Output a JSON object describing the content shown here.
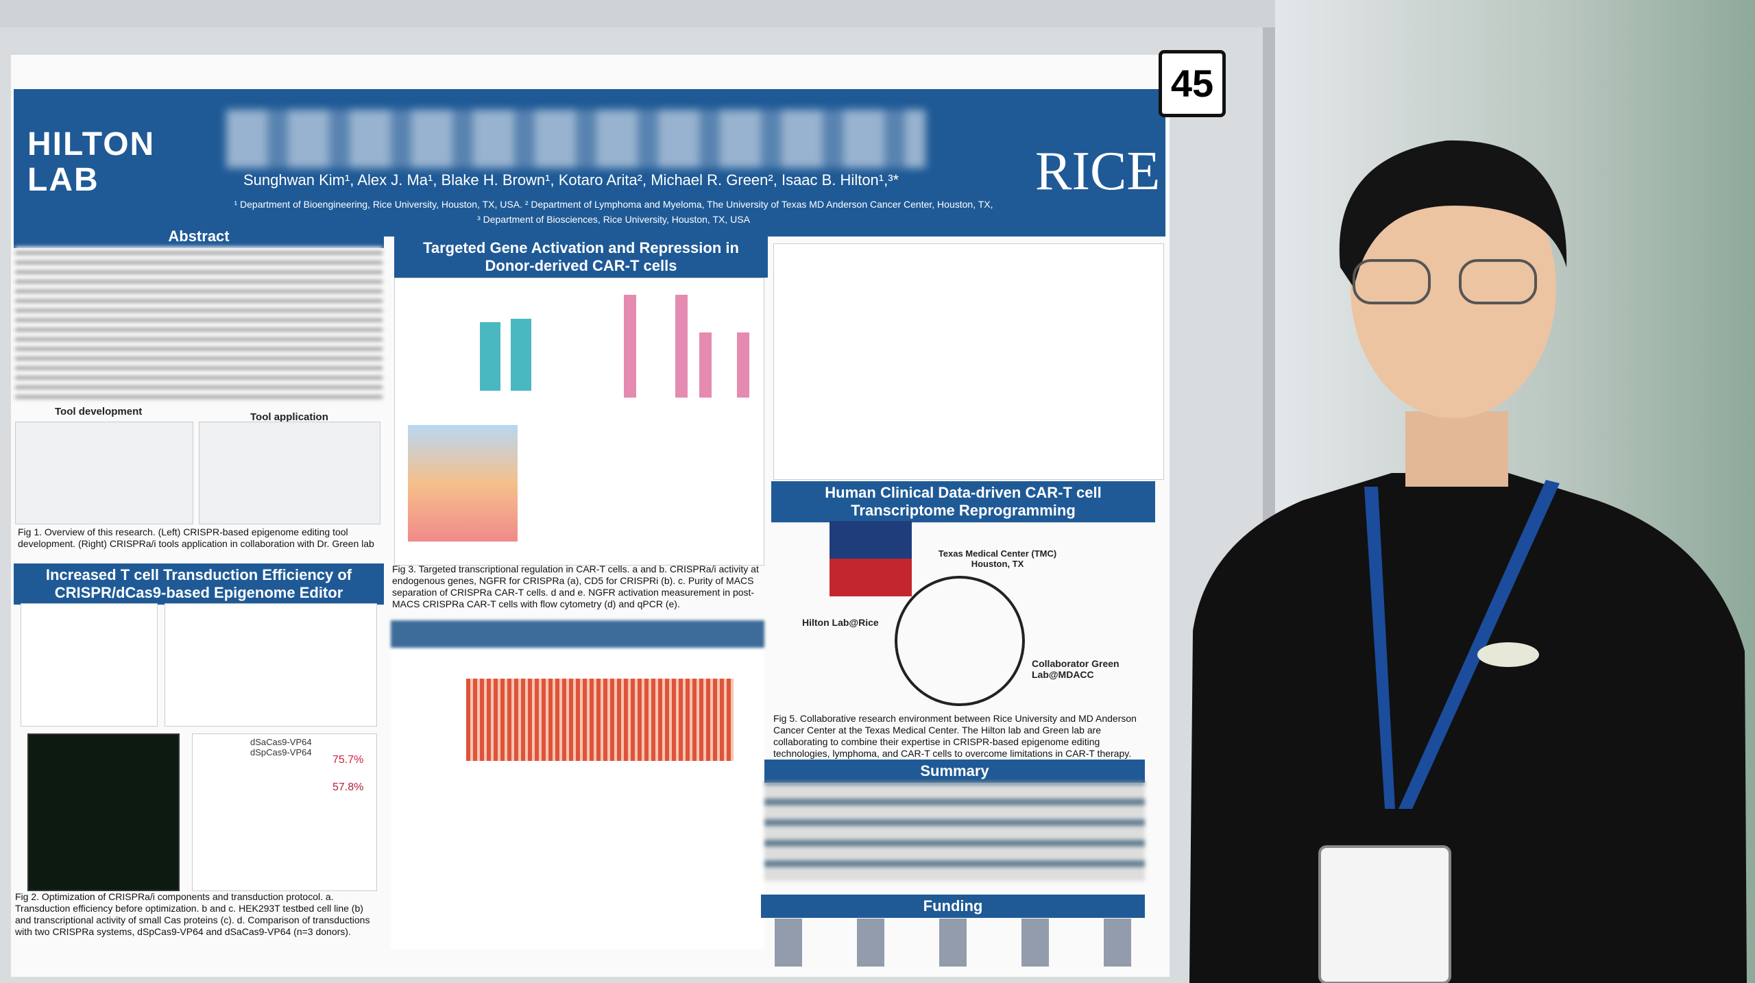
{
  "poster_number": "45",
  "poster": {
    "lab": "HILTON LAB",
    "institution": "RICE",
    "authors": "Sunghwan Kim¹, Alex J. Ma¹, Blake H. Brown¹, Kotaro Arita², Michael R. Green², Isaac B. Hilton¹,³*",
    "affiliations": [
      "¹ Department of Bioengineering, Rice University, Houston, TX, USA. ² Department of Lymphoma and Myeloma, The University of Texas MD Anderson Cancer Center, Houston, TX,",
      "³ Department of Biosciences, Rice University, Houston, TX, USA"
    ],
    "sections": [
      "Abstract",
      "Targeted Gene Activation and Repression in Donor-derived CAR-T cells",
      "Increased T cell Transduction Efficiency of CRISPR/dCas9-based Epigenome Editor",
      "Human Clinical Data-driven CAR-T cell Transcriptome Reprogramming",
      "Summary",
      "Funding"
    ],
    "labels": [
      "Tool development",
      "Tool application",
      "Texas Medical Center (TMC) Houston, TX",
      "Hilton Lab@Rice",
      "Collaborator Green Lab@MDACC",
      "75.7%",
      "57.8%",
      "dSaCas9-VP64",
      "dSpCas9-VP64"
    ],
    "captions": [
      "Fig 1. Overview of this research. (Left) CRISPR-based epigenome editing tool development. (Right) CRISPRa/i tools application in collaboration with Dr. Green lab",
      "Fig 2. Optimization of CRISPRa/i components and transduction protocol. a. Transduction efficiency before optimization. b and c. HEK293T testbed cell line (b) and transcriptional activity of small Cas proteins (c). d. Comparison of transductions with two CRISPRa systems, dSpCas9-VP64 and dSaCas9-VP64 (n=3 donors).",
      "Fig 3. Targeted transcriptional regulation in CAR-T cells. a and b. CRISPRa/i activity at endogenous genes, NGFR for CRISPRa (a), CD5 for CRISPRi (b). c. Purity of MACS separation of CRISPRa CAR-T cells. d and e. NGFR activation measurement in post-MACS CRISPRa CAR-T cells with flow cytometry (d) and qPCR (e).",
      "Fig 5. Collaborative research environment between Rice University and MD Anderson Cancer Center at the Texas Medical Center. The Hilton lab and Green lab are collaborating to combine their expertise in CRISPR-based epigenome editing technologies, lymphoma, and CAR-T cells to overcome limitations in CAR-T therapy."
    ]
  }
}
